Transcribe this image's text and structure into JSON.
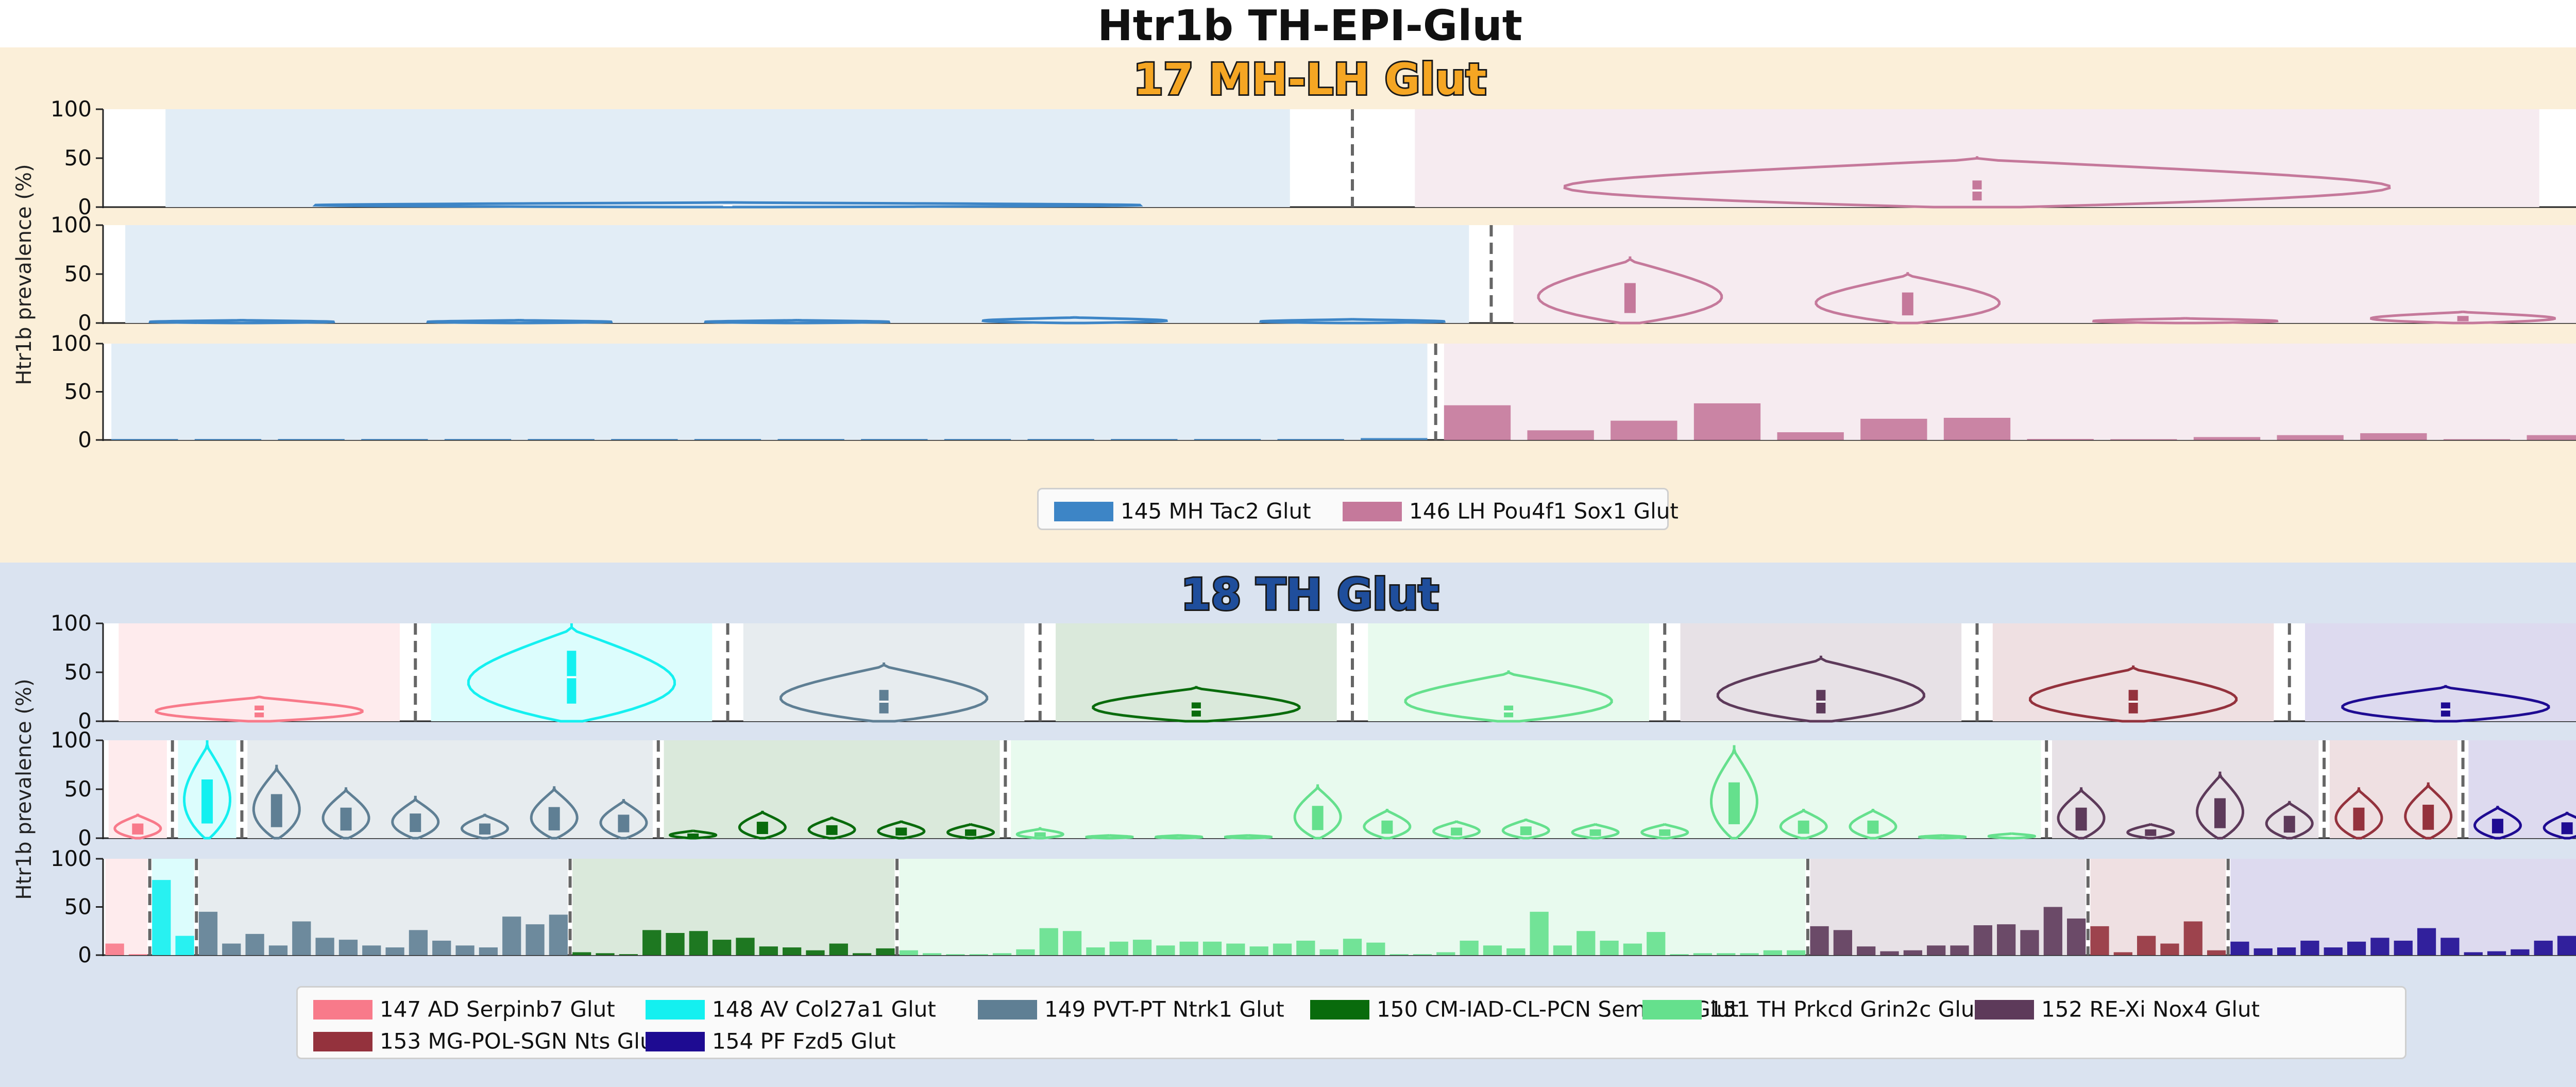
{
  "title": "Htr1b TH-EPI-Glut",
  "sections": [
    {
      "id": "17",
      "title": "17 MH-LH Glut",
      "ylabel": "Htr1b prevalence (%)",
      "yticks": [
        "0",
        "50",
        "100"
      ],
      "legend": [
        {
          "label": "145 MH Tac2 Glut",
          "color": "#3d85c6"
        },
        {
          "label": "146 LH Pou4f1 Sox1 Glut",
          "color": "#c5799b"
        }
      ]
    },
    {
      "id": "18",
      "title": "18 TH Glut",
      "ylabel": "Htr1b prevalence (%)",
      "yticks": [
        "0",
        "50",
        "100"
      ],
      "legend": [
        {
          "label": "147 AD Serpinb7 Glut",
          "color": "#f87a8a"
        },
        {
          "label": "148 AV Col27a1 Glut",
          "color": "#14f0f0"
        },
        {
          "label": "149 PVT-PT Ntrk1 Glut",
          "color": "#5f7f94"
        },
        {
          "label": "150 CM-IAD-CL-PCN Sema5b Glut",
          "color": "#096b0c"
        },
        {
          "label": "151 TH Prkcd Grin2c Glut",
          "color": "#65e08d"
        },
        {
          "label": "152 RE-Xi Nox4 Glut",
          "color": "#5d3a5a"
        },
        {
          "label": "153 MG-POL-SGN Nts Glut",
          "color": "#94323d"
        },
        {
          "label": "154 PF Fzd5 Glut",
          "color": "#1e0b92"
        }
      ]
    }
  ],
  "chart_data": [
    {
      "type": "violin",
      "section": "17 MH-LH Glut",
      "level": "subclass",
      "ylim": [
        0,
        100
      ],
      "ylabel": "Htr1b prevalence (%)",
      "groups": [
        {
          "name": "145 MH Tac2 Glut",
          "color": "#3d85c6",
          "max": 5,
          "median": 2,
          "q1": 1,
          "q3": 3
        },
        {
          "name": "146 LH Pou4f1 Sox1 Glut",
          "color": "#c5799b",
          "max": 52,
          "median": 17,
          "q1": 5,
          "q3": 30
        }
      ]
    },
    {
      "type": "violin",
      "section": "17 MH-LH Glut",
      "level": "supertype",
      "ylim": [
        0,
        100
      ],
      "groups": [
        {
          "parent": "145 MH Tac2 Glut",
          "color": "#3d85c6",
          "values": [
            2,
            1,
            3,
            6,
            4
          ]
        },
        {
          "parent": "146 LH Pou4f1 Sox1 Glut",
          "color": "#c5799b",
          "values": [
            68,
            52,
            5,
            12
          ]
        }
      ]
    },
    {
      "type": "bar",
      "section": "17 MH-LH Glut",
      "level": "cluster",
      "ylim": [
        0,
        100
      ],
      "series": [
        {
          "parent": "145 MH Tac2 Glut",
          "color": "#3d85c6",
          "values": [
            1,
            1,
            1,
            1,
            1,
            1,
            1,
            1,
            1,
            1,
            1,
            1,
            1,
            1,
            1,
            2
          ]
        },
        {
          "parent": "146 LH Pou4f1 Sox1 Glut",
          "color": "#c5799b",
          "values": [
            36,
            10,
            20,
            38,
            8,
            22,
            23,
            1,
            0,
            3,
            5,
            7,
            0,
            5
          ]
        }
      ]
    },
    {
      "type": "violin",
      "section": "18 TH Glut",
      "level": "subclass",
      "ylim": [
        0,
        100
      ],
      "ylabel": "Htr1b prevalence (%)",
      "groups": [
        {
          "name": "147 AD Serpinb7 Glut",
          "color": "#f87a8a",
          "max": 26,
          "median": 10
        },
        {
          "name": "148 AV Col27a1 Glut",
          "color": "#14f0f0",
          "max": 100,
          "median": 45
        },
        {
          "name": "149 PVT-PT Ntrk1 Glut",
          "color": "#5f7f94",
          "max": 60,
          "median": 20
        },
        {
          "name": "150 CM-IAD-CL-PCN Sema5b Glut",
          "color": "#096b0c",
          "max": 36,
          "median": 12
        },
        {
          "name": "151 TH Prkcd Grin2c Glut",
          "color": "#65e08d",
          "max": 52,
          "median": 10
        },
        {
          "name": "152 RE-Xi Nox4 Glut",
          "color": "#5d3a5a",
          "max": 67,
          "median": 20
        },
        {
          "name": "153 MG-POL-SGN Nts Glut",
          "color": "#94323d",
          "max": 57,
          "median": 20
        },
        {
          "name": "154 PF Fzd5 Glut",
          "color": "#1e0b92",
          "max": 37,
          "median": 12
        }
      ]
    },
    {
      "type": "violin",
      "section": "18 TH Glut",
      "level": "supertype",
      "ylim": [
        0,
        100
      ],
      "groups": [
        {
          "parent": "147 AD Serpinb7 Glut",
          "color": "#f87a8a",
          "values": [
            25
          ]
        },
        {
          "parent": "148 AV Col27a1 Glut",
          "color": "#14f0f0",
          "values": [
            100
          ]
        },
        {
          "parent": "149 PVT-PT Ntrk1 Glut",
          "color": "#5f7f94",
          "values": [
            75,
            52,
            42,
            25,
            53,
            40
          ]
        },
        {
          "parent": "150 CM-IAD-CL-PCN Sema5b Glut",
          "color": "#096b0c",
          "values": [
            8,
            28,
            22,
            18,
            15
          ]
        },
        {
          "parent": "151 TH Prkcd Grin2c Glut",
          "color": "#65e08d",
          "values": [
            10,
            2,
            2,
            2,
            55,
            30,
            18,
            20,
            15,
            15,
            95,
            30,
            30,
            2,
            5
          ]
        },
        {
          "parent": "152 RE-Xi Nox4 Glut",
          "color": "#5d3a5a",
          "values": [
            52,
            15,
            68,
            38
          ]
        },
        {
          "parent": "153 MG-POL-SGN Nts Glut",
          "color": "#94323d",
          "values": [
            52,
            57
          ]
        },
        {
          "parent": "154 PF Fzd5 Glut",
          "color": "#1e0b92",
          "values": [
            33,
            27
          ]
        }
      ]
    },
    {
      "type": "bar",
      "section": "18 TH Glut",
      "level": "cluster",
      "ylim": [
        0,
        100
      ],
      "series": [
        {
          "parent": "147 AD Serpinb7 Glut",
          "color": "#f87a8a",
          "values": [
            12,
            1
          ]
        },
        {
          "parent": "148 AV Col27a1 Glut",
          "color": "#14f0f0",
          "values": [
            78,
            20
          ]
        },
        {
          "parent": "149 PVT-PT Ntrk1 Glut",
          "color": "#5f7f94",
          "values": [
            45,
            12,
            22,
            10,
            35,
            18,
            16,
            10,
            8,
            26,
            15,
            10,
            8,
            40,
            32,
            42
          ]
        },
        {
          "parent": "150 CM-IAD-CL-PCN Sema5b Glut",
          "color": "#096b0c",
          "values": [
            3,
            2,
            1,
            26,
            23,
            25,
            16,
            18,
            9,
            8,
            5,
            12,
            2,
            7
          ]
        },
        {
          "parent": "151 TH Prkcd Grin2c Glut",
          "color": "#65e08d",
          "values": [
            5,
            2,
            1,
            1,
            2,
            6,
            28,
            25,
            8,
            14,
            16,
            10,
            14,
            14,
            12,
            9,
            12,
            15,
            6,
            17,
            13,
            1,
            1,
            3,
            15,
            10,
            7,
            45,
            10,
            25,
            15,
            12,
            24,
            1,
            2,
            2,
            2,
            5,
            5
          ]
        },
        {
          "parent": "152 RE-Xi Nox4 Glut",
          "color": "#5d3a5a",
          "values": [
            30,
            26,
            9,
            4,
            5,
            10,
            10,
            31,
            32,
            26,
            50,
            38
          ]
        },
        {
          "parent": "153 MG-POL-SGN Nts Glut",
          "color": "#94323d",
          "values": [
            30,
            3,
            20,
            12,
            35,
            5
          ]
        },
        {
          "parent": "154 PF Fzd5 Glut",
          "color": "#1e0b92",
          "values": [
            14,
            7,
            8,
            15,
            8,
            14,
            18,
            15,
            28,
            18,
            3,
            4,
            6,
            15,
            20,
            10
          ]
        }
      ]
    }
  ]
}
